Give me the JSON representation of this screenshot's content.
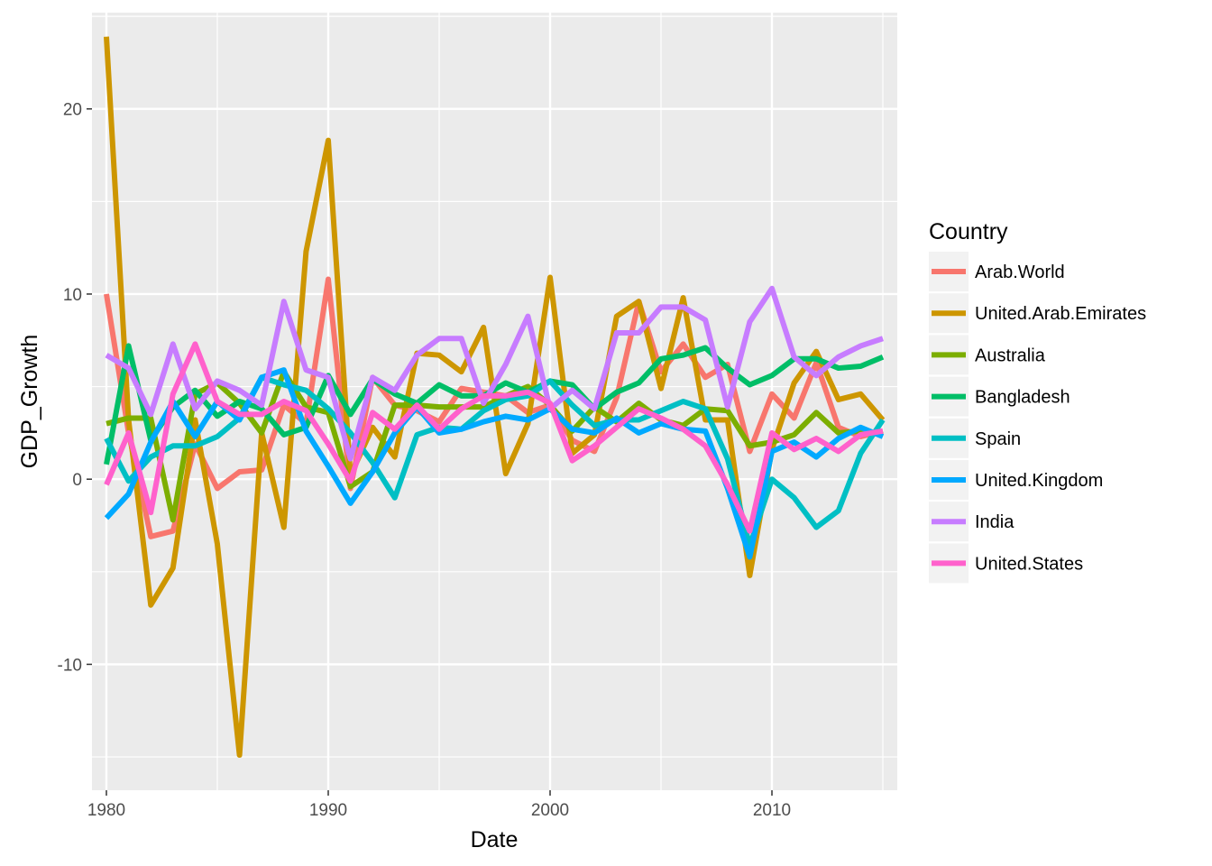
{
  "chart_data": {
    "type": "line",
    "xlabel": "Date",
    "ylabel": "GDP_Growth",
    "xlim": [
      1979.35,
      2015.65
    ],
    "ylim": [
      -16.8,
      25.2
    ],
    "x_ticks": [
      1980,
      1990,
      2000,
      2010
    ],
    "x_tick_labels": [
      "1980",
      "1990",
      "2000",
      "2010"
    ],
    "y_ticks": [
      -10,
      0,
      10,
      20
    ],
    "y_tick_labels": [
      "-10",
      "0",
      "10",
      "20"
    ],
    "grid": true,
    "legend": {
      "title": "Country",
      "position": "right"
    },
    "x": [
      1980,
      1981,
      1982,
      1983,
      1984,
      1985,
      1986,
      1987,
      1988,
      1989,
      1990,
      1991,
      1992,
      1993,
      1994,
      1995,
      1996,
      1997,
      1998,
      1999,
      2000,
      2001,
      2002,
      2003,
      2004,
      2005,
      2006,
      2007,
      2008,
      2009,
      2010,
      2011,
      2012,
      2013,
      2014,
      2015
    ],
    "series": [
      {
        "name": "Arab.World",
        "color": "#F8766D",
        "values": [
          10.0,
          2.5,
          -3.1,
          -2.8,
          1.9,
          -0.5,
          0.4,
          0.5,
          4.0,
          3.0,
          10.8,
          -0.5,
          5.5,
          4.0,
          3.7,
          3.1,
          4.9,
          4.7,
          4.5,
          3.6,
          4.0,
          2.1,
          1.5,
          4.4,
          9.6,
          5.8,
          7.3,
          5.5,
          6.2,
          1.5,
          4.6,
          3.3,
          6.3,
          2.8,
          2.3,
          2.6
        ]
      },
      {
        "name": "United.Arab.Emirates",
        "color": "#CD9600",
        "values": [
          23.9,
          3.2,
          -6.8,
          -4.8,
          3.2,
          -3.5,
          -14.9,
          2.5,
          -2.6,
          12.3,
          18.3,
          0.2,
          2.8,
          1.2,
          6.8,
          6.7,
          5.8,
          8.2,
          0.3,
          3.0,
          10.9,
          1.4,
          2.4,
          8.8,
          9.6,
          4.9,
          9.8,
          3.2,
          3.2,
          -5.2,
          1.6,
          5.2,
          6.9,
          4.3,
          4.6,
          3.2
        ]
      },
      {
        "name": "Australia",
        "color": "#7CAE00",
        "values": [
          3.0,
          3.3,
          3.3,
          -2.2,
          4.6,
          5.2,
          4.1,
          2.5,
          5.8,
          3.9,
          3.6,
          -0.4,
          0.4,
          4.0,
          4.0,
          3.9,
          3.9,
          3.9,
          4.5,
          5.0,
          4.0,
          2.6,
          3.9,
          3.1,
          4.1,
          3.2,
          2.9,
          3.8,
          3.7,
          1.8,
          2.0,
          2.4,
          3.6,
          2.5,
          2.6,
          2.4
        ]
      },
      {
        "name": "Bangladesh",
        "color": "#00BE67",
        "values": [
          0.8,
          7.2,
          2.1,
          3.9,
          4.8,
          3.4,
          4.2,
          3.8,
          2.4,
          2.8,
          5.6,
          3.5,
          5.4,
          4.6,
          4.1,
          5.1,
          4.5,
          4.5,
          5.2,
          4.7,
          5.3,
          5.1,
          3.8,
          4.7,
          5.2,
          6.5,
          6.7,
          7.1,
          6.0,
          5.1,
          5.6,
          6.5,
          6.5,
          6.0,
          6.1,
          6.6
        ]
      },
      {
        "name": "Spain",
        "color": "#00BFC4",
        "values": [
          2.2,
          -0.1,
          1.2,
          1.8,
          1.8,
          2.3,
          3.3,
          5.5,
          5.1,
          4.8,
          3.8,
          2.5,
          0.9,
          -1.0,
          2.4,
          2.8,
          2.7,
          3.7,
          4.3,
          4.5,
          5.3,
          4.0,
          2.9,
          3.2,
          3.2,
          3.7,
          4.2,
          3.8,
          1.1,
          -3.6,
          0.0,
          -1.0,
          -2.6,
          -1.7,
          1.4,
          3.2
        ]
      },
      {
        "name": "United.Kingdom",
        "color": "#00A9FF",
        "values": [
          -2.1,
          -0.8,
          2.0,
          4.2,
          2.3,
          4.2,
          3.2,
          5.5,
          5.9,
          2.6,
          0.7,
          -1.3,
          0.4,
          2.5,
          3.9,
          2.5,
          2.7,
          3.1,
          3.4,
          3.2,
          3.8,
          2.7,
          2.5,
          3.3,
          2.5,
          3.0,
          2.7,
          2.6,
          -0.5,
          -4.2,
          1.5,
          2.0,
          1.2,
          2.2,
          2.8,
          2.3
        ]
      },
      {
        "name": "India",
        "color": "#C77CFF",
        "values": [
          6.7,
          6.0,
          3.5,
          7.3,
          3.8,
          5.3,
          4.8,
          4.0,
          9.6,
          5.9,
          5.5,
          1.1,
          5.5,
          4.8,
          6.7,
          7.6,
          7.6,
          4.1,
          6.2,
          8.8,
          3.8,
          4.8,
          3.8,
          7.9,
          7.9,
          9.3,
          9.3,
          8.6,
          3.9,
          8.5,
          10.3,
          6.6,
          5.6,
          6.6,
          7.2,
          7.6
        ]
      },
      {
        "name": "United.States",
        "color": "#FF61CC",
        "values": [
          -0.3,
          2.5,
          -1.8,
          4.6,
          7.3,
          4.2,
          3.5,
          3.5,
          4.2,
          3.7,
          1.9,
          -0.1,
          3.6,
          2.7,
          4.0,
          2.7,
          3.8,
          4.5,
          4.5,
          4.7,
          4.1,
          1.0,
          1.8,
          2.8,
          3.8,
          3.3,
          2.7,
          1.8,
          -0.3,
          -2.8,
          2.5,
          1.6,
          2.2,
          1.5,
          2.4,
          2.6
        ]
      }
    ]
  }
}
